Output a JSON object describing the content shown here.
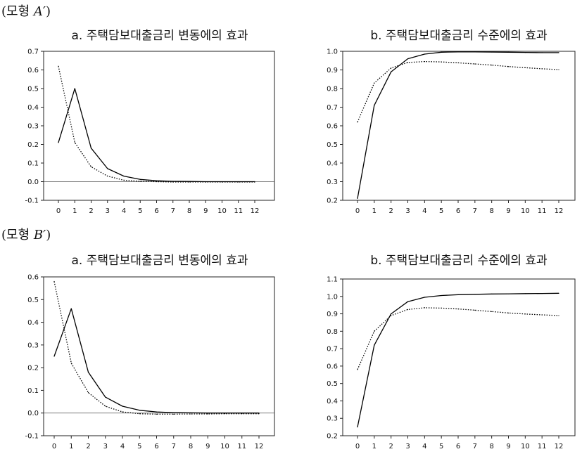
{
  "model_labels": [
    {
      "prefix": "(모형 ",
      "var": "A′",
      "suffix": ")"
    },
    {
      "prefix": "(모형 ",
      "var": "B′",
      "suffix": ")"
    }
  ],
  "chart_data": [
    {
      "id": "a1",
      "type": "line",
      "title": "a. 주택담보대출금리 변동에의 효과",
      "x": [
        0,
        1,
        2,
        3,
        4,
        5,
        6,
        7,
        8,
        9,
        10,
        11,
        12
      ],
      "x_tick_labels": [
        "0",
        "1",
        "2",
        "3",
        "4",
        "5",
        "6",
        "7",
        "8",
        "9",
        "10",
        "11",
        "12"
      ],
      "ylim": [
        -0.1,
        0.7
      ],
      "y_ticks": [
        -0.1,
        0.0,
        0.1,
        0.2,
        0.3,
        0.4,
        0.5,
        0.6,
        0.7
      ],
      "y_tick_labels": [
        "-0.1",
        "0.0",
        "0.1",
        "0.2",
        "0.3",
        "0.4",
        "0.5",
        "0.6",
        "0.7"
      ],
      "zero_line": true,
      "series": [
        {
          "style": "solid",
          "values": [
            0.21,
            0.5,
            0.18,
            0.07,
            0.03,
            0.012,
            0.005,
            0.002,
            0.001,
            0.0,
            0.0,
            0.0,
            0.0
          ]
        },
        {
          "style": "dotted",
          "values": [
            0.62,
            0.21,
            0.08,
            0.03,
            0.008,
            0.002,
            0.0,
            -0.002,
            -0.002,
            -0.002,
            -0.002,
            -0.002,
            -0.002
          ]
        }
      ]
    },
    {
      "id": "b1",
      "type": "line",
      "title": "b. 주택담보대출금리 수준에의 효과",
      "x": [
        0,
        1,
        2,
        3,
        4,
        5,
        6,
        7,
        8,
        9,
        10,
        11,
        12
      ],
      "x_tick_labels": [
        "0",
        "1",
        "2",
        "3",
        "4",
        "5",
        "6",
        "7",
        "8",
        "9",
        "10",
        "11",
        "12"
      ],
      "ylim": [
        0.2,
        1.0
      ],
      "y_ticks": [
        0.2,
        0.3,
        0.4,
        0.5,
        0.6,
        0.7,
        0.8,
        0.9,
        1.0
      ],
      "y_tick_labels": [
        "0.2",
        "0.3",
        "0.4",
        "0.5",
        "0.6",
        "0.7",
        "0.8",
        "0.9",
        "1.0"
      ],
      "zero_line": false,
      "series": [
        {
          "style": "solid",
          "values": [
            0.21,
            0.71,
            0.89,
            0.96,
            0.985,
            0.995,
            0.997,
            0.997,
            0.996,
            0.995,
            0.994,
            0.993,
            0.993
          ]
        },
        {
          "style": "dotted",
          "values": [
            0.62,
            0.83,
            0.91,
            0.94,
            0.945,
            0.943,
            0.938,
            0.932,
            0.926,
            0.918,
            0.912,
            0.906,
            0.902
          ]
        }
      ]
    },
    {
      "id": "a2",
      "type": "line",
      "title": "a. 주택담보대출금리 변동에의 효과",
      "x": [
        0,
        1,
        2,
        3,
        4,
        5,
        6,
        7,
        8,
        9,
        10,
        11,
        12
      ],
      "x_tick_labels": [
        "0",
        "1",
        "2",
        "3",
        "4",
        "5",
        "6",
        "7",
        "8",
        "9",
        "10",
        "11",
        "12"
      ],
      "ylim": [
        -0.1,
        0.6
      ],
      "y_ticks": [
        -0.1,
        0.0,
        0.1,
        0.2,
        0.3,
        0.4,
        0.5,
        0.6
      ],
      "y_tick_labels": [
        "-0.1",
        "0.0",
        "0.1",
        "0.2",
        "0.3",
        "0.4",
        "0.5",
        "0.6"
      ],
      "zero_line": true,
      "series": [
        {
          "style": "solid",
          "values": [
            0.25,
            0.46,
            0.18,
            0.07,
            0.03,
            0.012,
            0.005,
            0.002,
            0.001,
            0.0,
            0.0,
            0.0,
            0.0
          ]
        },
        {
          "style": "dotted",
          "values": [
            0.58,
            0.22,
            0.09,
            0.03,
            0.005,
            -0.003,
            -0.005,
            -0.005,
            -0.004,
            -0.004,
            -0.003,
            -0.003,
            -0.003
          ]
        }
      ]
    },
    {
      "id": "b2",
      "type": "line",
      "title": "b. 주택담보대출금리 수준에의 효과",
      "x": [
        0,
        1,
        2,
        3,
        4,
        5,
        6,
        7,
        8,
        9,
        10,
        11,
        12
      ],
      "x_tick_labels": [
        "0",
        "1",
        "2",
        "3",
        "4",
        "5",
        "6",
        "7",
        "8",
        "9",
        "10",
        "11",
        "12"
      ],
      "ylim": [
        0.2,
        1.1
      ],
      "y_ticks": [
        0.2,
        0.3,
        0.4,
        0.5,
        0.6,
        0.7,
        0.8,
        0.9,
        1.0,
        1.1
      ],
      "y_tick_labels": [
        "0.2",
        "0.3",
        "0.4",
        "0.5",
        "0.6",
        "0.7",
        "0.8",
        "0.9",
        "1.0",
        "1.1"
      ],
      "zero_line": false,
      "series": [
        {
          "style": "solid",
          "values": [
            0.25,
            0.72,
            0.9,
            0.97,
            0.995,
            1.005,
            1.01,
            1.012,
            1.014,
            1.015,
            1.016,
            1.017,
            1.018
          ]
        },
        {
          "style": "dotted",
          "values": [
            0.58,
            0.8,
            0.89,
            0.925,
            0.935,
            0.933,
            0.928,
            0.921,
            0.913,
            0.905,
            0.899,
            0.894,
            0.89
          ]
        }
      ]
    }
  ]
}
